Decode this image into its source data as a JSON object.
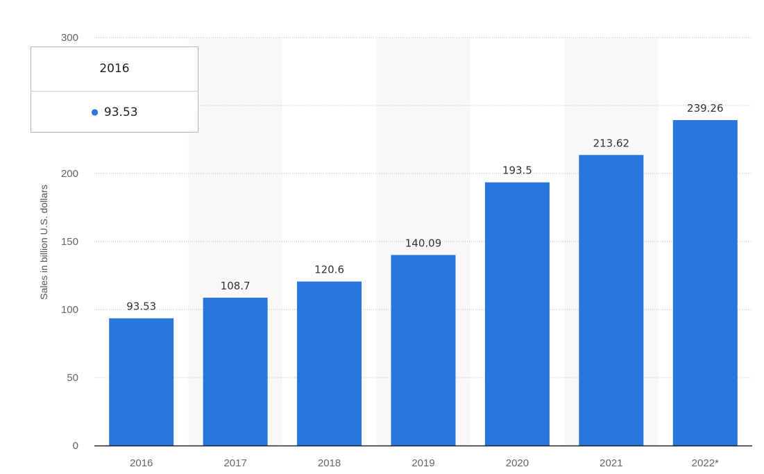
{
  "chart_data": {
    "type": "bar",
    "categories": [
      "2016",
      "2017",
      "2018",
      "2019",
      "2020",
      "2021",
      "2022*"
    ],
    "values": [
      93.53,
      108.7,
      120.6,
      140.09,
      193.5,
      213.62,
      239.26
    ],
    "value_labels": [
      "93.53",
      "108.7",
      "120.6",
      "140.09",
      "193.5",
      "213.62",
      "239.26"
    ],
    "title": "",
    "xlabel": "",
    "ylabel": "Sales in billion U.S. dollars",
    "ylim": [
      0,
      300
    ],
    "yticks": [
      0,
      50,
      100,
      150,
      200,
      250,
      300
    ],
    "ytick_labels": [
      "0",
      "50",
      "100",
      "150",
      "200",
      "",
      "300"
    ],
    "grid": "horizontal dotted",
    "bar_color": "#2876dd",
    "alternating_column_shading": true,
    "legend": "none"
  },
  "tooltip": {
    "title": "2016",
    "value": "93.53",
    "bullet_color": "#2876dd"
  },
  "colors": {
    "bar": "#2876dd",
    "grid": "#bbbbbb",
    "axis": "#222222",
    "column_band": "#f8f8f8"
  }
}
